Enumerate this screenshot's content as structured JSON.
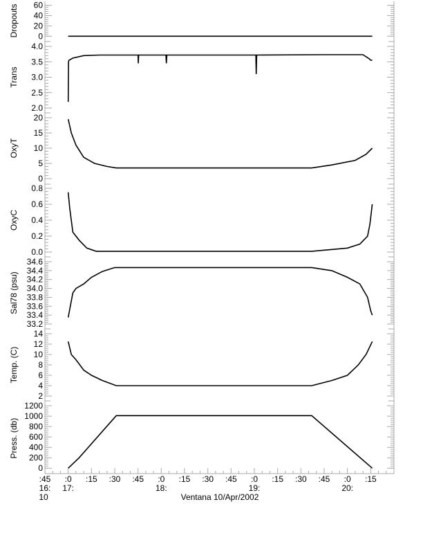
{
  "chart_data": {
    "type": "line",
    "title": "Ventana 10/Apr/2002",
    "x_unit": "minutes after 16:45",
    "xlim": [
      0,
      225
    ],
    "x_ticks": [
      {
        "v": 0,
        "l": ":45"
      },
      {
        "v": 15,
        "l": ":0"
      },
      {
        "v": 30,
        "l": ":15"
      },
      {
        "v": 45,
        "l": ":30"
      },
      {
        "v": 60,
        "l": ":45"
      },
      {
        "v": 75,
        "l": ":0"
      },
      {
        "v": 90,
        "l": ":15"
      },
      {
        "v": 105,
        "l": ":30"
      },
      {
        "v": 120,
        "l": ":45"
      },
      {
        "v": 135,
        "l": ":0"
      },
      {
        "v": 150,
        "l": ":15"
      },
      {
        "v": 165,
        "l": ":30"
      },
      {
        "v": 180,
        "l": ":45"
      },
      {
        "v": 195,
        "l": ":0"
      },
      {
        "v": 210,
        "l": ":15"
      }
    ],
    "hour_labels": [
      {
        "v": 0,
        "l": "16:"
      },
      {
        "v": 15,
        "l": "17:"
      },
      {
        "v": 75,
        "l": "18:"
      },
      {
        "v": 135,
        "l": "19:"
      },
      {
        "v": 195,
        "l": "20:"
      }
    ],
    "day_label": "10",
    "panels": [
      {
        "ylabel": "Dropouts",
        "ylim": [
          -5,
          65
        ],
        "ticks": [
          0,
          20,
          40,
          60
        ],
        "labels": [
          "0",
          "20",
          "40",
          "60"
        ],
        "x": [
          15,
          211
        ],
        "y": [
          0,
          0
        ]
      },
      {
        "ylabel": "Trans",
        "ylim": [
          2.0,
          4.0
        ],
        "ticks": [
          2.0,
          2.5,
          3.0,
          3.5,
          4.0
        ],
        "labels": [
          "2.0",
          "2.5",
          "3.0",
          "3.5",
          "4.0"
        ],
        "x": [
          15,
          15.2,
          15.5,
          18,
          25,
          35,
          60,
          60.2,
          60.4,
          70,
          78,
          78.3,
          78.6,
          100,
          136,
          136.2,
          136.5,
          180,
          205,
          209,
          210,
          211
        ],
        "y": [
          2.2,
          3.5,
          3.55,
          3.62,
          3.7,
          3.72,
          3.72,
          3.45,
          3.72,
          3.72,
          3.72,
          3.45,
          3.72,
          3.72,
          3.72,
          3.1,
          3.72,
          3.73,
          3.73,
          3.6,
          3.55,
          3.55
        ]
      },
      {
        "ylabel": "OxyT",
        "ylim": [
          0,
          20
        ],
        "ticks": [
          0,
          5,
          10,
          15,
          20
        ],
        "labels": [
          "0",
          "5",
          "10",
          "15",
          "20"
        ],
        "x": [
          15,
          17,
          20,
          25,
          32,
          40,
          46,
          172,
          185,
          200,
          207,
          211
        ],
        "y": [
          19.5,
          15,
          11,
          7,
          5,
          4,
          3.5,
          3.5,
          4.5,
          6,
          8,
          10
        ]
      },
      {
        "ylabel": "OxyC",
        "ylim": [
          0,
          0.8
        ],
        "ticks": [
          0,
          0.2,
          0.4,
          0.6,
          0.8
        ],
        "labels": [
          "0.0",
          "0.2",
          "0.4",
          "0.6",
          "0.8"
        ],
        "x": [
          15,
          16,
          18,
          22,
          27,
          33,
          172,
          195,
          203,
          208,
          209.5,
          211
        ],
        "y": [
          0.75,
          0.55,
          0.25,
          0.15,
          0.05,
          0.01,
          0.01,
          0.05,
          0.1,
          0.2,
          0.35,
          0.6
        ]
      },
      {
        "ylabel": "Sal78 (psu)",
        "ylim": [
          33.2,
          34.6
        ],
        "ticks": [
          33.2,
          33.4,
          33.6,
          33.8,
          34.0,
          34.2,
          34.4,
          34.6
        ],
        "labels": [
          "33.2",
          "33.4",
          "33.6",
          "33.8",
          "34.0",
          "34.2",
          "34.4",
          "34.6"
        ],
        "x": [
          15,
          18,
          20,
          25,
          30,
          37,
          45,
          172,
          185,
          195,
          203,
          208,
          210,
          211
        ],
        "y": [
          33.35,
          33.9,
          34.0,
          34.1,
          34.25,
          34.38,
          34.47,
          34.47,
          34.4,
          34.25,
          34.1,
          33.8,
          33.5,
          33.4
        ]
      },
      {
        "ylabel": "Temp. (C)",
        "ylim": [
          2,
          14
        ],
        "ticks": [
          2,
          4,
          6,
          8,
          10,
          12,
          14
        ],
        "labels": [
          "2",
          "4",
          "6",
          "8",
          "10",
          "12",
          "14"
        ],
        "x": [
          15,
          17,
          20,
          25,
          30,
          37,
          46,
          172,
          185,
          195,
          202,
          207,
          211
        ],
        "y": [
          12.5,
          10,
          9,
          7,
          6,
          5,
          4,
          4,
          5,
          6,
          8,
          10,
          12.5
        ]
      },
      {
        "ylabel": "Press. (db)",
        "ylim": [
          -50,
          1200
        ],
        "ticks": [
          0,
          200,
          400,
          600,
          800,
          1000,
          1200
        ],
        "labels": [
          "0",
          "200",
          "400",
          "600",
          "800",
          "1000",
          "1200"
        ],
        "x": [
          15,
          22,
          46,
          172,
          211
        ],
        "y": [
          0,
          200,
          1010,
          1010,
          0
        ]
      }
    ]
  }
}
